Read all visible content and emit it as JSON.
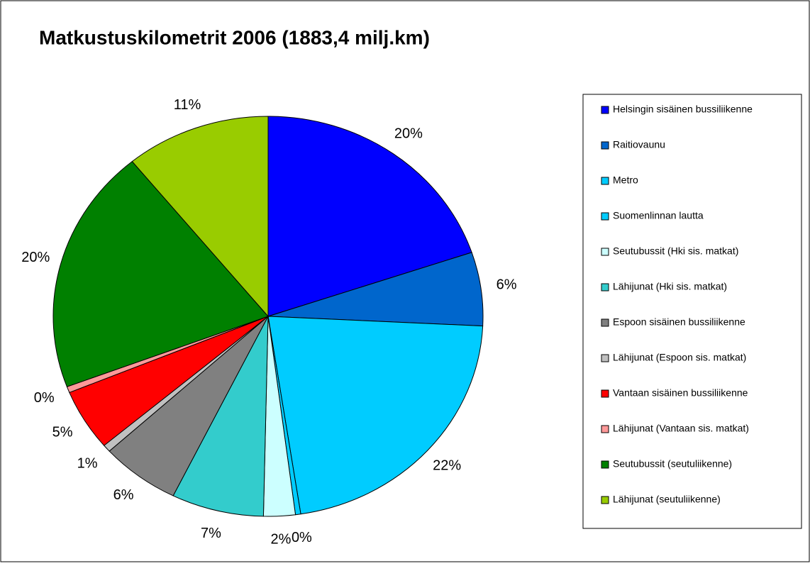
{
  "chart_data": {
    "type": "pie",
    "title": "Matkustuskilometrit 2006 (1883,4 milj.km)",
    "categories": [
      "Helsingin sisäinen bussiliikenne",
      "Raitiovaunu",
      "Metro",
      "Suomenlinnan lautta",
      "Seutubussit (Hki sis. matkat)",
      "Lähijunat (Hki sis. matkat)",
      "Espoon sisäinen bussiliikenne",
      "Lähijunat (Espoon sis. matkat)",
      "Vantaan sisäinen bussiliikenne",
      "Lähijunat (Vantaan sis. matkat)",
      "Seutubussit (seutuliikenne)",
      "Lähijunat (seutuliikenne)"
    ],
    "values": [
      20,
      6,
      22,
      0.4,
      2.4,
      7,
      6,
      0.6,
      5,
      0.5,
      20,
      11
    ],
    "value_labels": [
      "20%",
      "6%",
      "22%",
      "0%",
      "2%",
      "7%",
      "6%",
      "1%",
      "5%",
      "0%",
      "20%",
      "11%"
    ],
    "colors": [
      "#0000ff",
      "#0066cc",
      "#00ccff",
      "#00ccff",
      "#ccffff",
      "#33cccc",
      "#808080",
      "#c0c0c0",
      "#ff0000",
      "#ff9999",
      "#008000",
      "#99cc00"
    ],
    "legend": "right"
  }
}
